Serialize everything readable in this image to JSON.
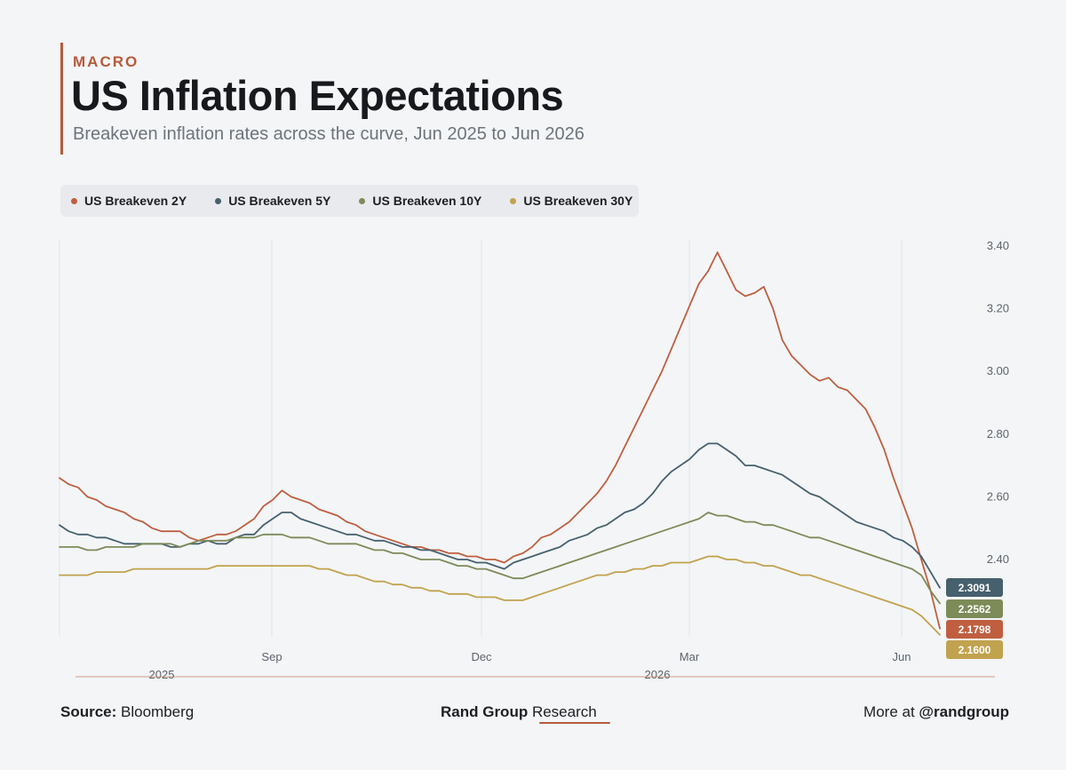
{
  "header": {
    "kicker": "MACRO",
    "title": "US Inflation Expectations",
    "subtitle": "Breakeven inflation rates across the curve, Jun 2025 to Jun 2026"
  },
  "footer": {
    "source_label": "Source:",
    "source_value": "Bloomberg",
    "brand_bold": "Rand Group",
    "brand_light": "Research",
    "more_label": "More at",
    "more_handle": "@randgroup"
  },
  "chart_data": {
    "type": "line",
    "x_start": "2025-06-02",
    "x_step": "weekly",
    "x_ticks": [
      "Sep",
      "Dec",
      "Mar",
      "Jun"
    ],
    "year_labels": [
      "2025",
      "2026"
    ],
    "ylim": [
      2.15,
      3.42
    ],
    "y_ticks": [
      "3.40",
      "3.20",
      "3.00",
      "2.80",
      "2.60",
      "2.40"
    ],
    "y_axis_position": "right",
    "grid": "vertical",
    "legend_position": "top-left",
    "series": [
      {
        "name": "US Breakeven 2Y",
        "color": "#bf5f40",
        "last_label": "2.1798",
        "values": [
          2.66,
          2.64,
          2.63,
          2.6,
          2.59,
          2.57,
          2.56,
          2.55,
          2.53,
          2.52,
          2.5,
          2.49,
          2.49,
          2.49,
          2.47,
          2.46,
          2.47,
          2.48,
          2.48,
          2.49,
          2.51,
          2.53,
          2.57,
          2.59,
          2.62,
          2.6,
          2.59,
          2.58,
          2.56,
          2.55,
          2.54,
          2.52,
          2.51,
          2.49,
          2.48,
          2.47,
          2.46,
          2.45,
          2.44,
          2.44,
          2.43,
          2.43,
          2.42,
          2.42,
          2.41,
          2.41,
          2.4,
          2.4,
          2.39,
          2.41,
          2.42,
          2.44,
          2.47,
          2.48,
          2.5,
          2.52,
          2.55,
          2.58,
          2.61,
          2.65,
          2.7,
          2.76,
          2.82,
          2.88,
          2.94,
          3.0,
          3.07,
          3.14,
          3.21,
          3.28,
          3.32,
          3.38,
          3.32,
          3.26,
          3.24,
          3.25,
          3.27,
          3.2,
          3.1,
          3.05,
          3.02,
          2.99,
          2.97,
          2.98,
          2.95,
          2.94,
          2.91,
          2.88,
          2.82,
          2.75,
          2.66,
          2.58,
          2.5,
          2.4,
          2.3,
          2.18
        ]
      },
      {
        "name": "US Breakeven 5Y",
        "color": "#46606d",
        "last_label": "2.3091",
        "values": [
          2.51,
          2.49,
          2.48,
          2.48,
          2.47,
          2.47,
          2.46,
          2.45,
          2.45,
          2.45,
          2.45,
          2.45,
          2.44,
          2.44,
          2.45,
          2.45,
          2.46,
          2.45,
          2.45,
          2.47,
          2.48,
          2.48,
          2.51,
          2.53,
          2.55,
          2.55,
          2.53,
          2.52,
          2.51,
          2.5,
          2.49,
          2.48,
          2.48,
          2.47,
          2.46,
          2.46,
          2.45,
          2.44,
          2.44,
          2.43,
          2.43,
          2.42,
          2.41,
          2.4,
          2.4,
          2.39,
          2.39,
          2.38,
          2.37,
          2.39,
          2.4,
          2.41,
          2.42,
          2.43,
          2.44,
          2.46,
          2.47,
          2.48,
          2.5,
          2.51,
          2.53,
          2.55,
          2.56,
          2.58,
          2.61,
          2.65,
          2.68,
          2.7,
          2.72,
          2.75,
          2.77,
          2.77,
          2.75,
          2.73,
          2.7,
          2.7,
          2.69,
          2.68,
          2.67,
          2.65,
          2.63,
          2.61,
          2.6,
          2.58,
          2.56,
          2.54,
          2.52,
          2.51,
          2.5,
          2.49,
          2.47,
          2.46,
          2.44,
          2.41,
          2.36,
          2.31
        ]
      },
      {
        "name": "US Breakeven 10Y",
        "color": "#7d8b58",
        "last_label": "2.2562",
        "values": [
          2.44,
          2.44,
          2.44,
          2.43,
          2.43,
          2.44,
          2.44,
          2.44,
          2.44,
          2.45,
          2.45,
          2.45,
          2.45,
          2.44,
          2.45,
          2.46,
          2.46,
          2.46,
          2.46,
          2.47,
          2.47,
          2.47,
          2.48,
          2.48,
          2.48,
          2.47,
          2.47,
          2.47,
          2.46,
          2.45,
          2.45,
          2.45,
          2.45,
          2.44,
          2.43,
          2.43,
          2.42,
          2.42,
          2.41,
          2.4,
          2.4,
          2.4,
          2.39,
          2.38,
          2.38,
          2.37,
          2.37,
          2.36,
          2.35,
          2.34,
          2.34,
          2.35,
          2.36,
          2.37,
          2.38,
          2.39,
          2.4,
          2.41,
          2.42,
          2.43,
          2.44,
          2.45,
          2.46,
          2.47,
          2.48,
          2.49,
          2.5,
          2.51,
          2.52,
          2.53,
          2.55,
          2.54,
          2.54,
          2.53,
          2.52,
          2.52,
          2.51,
          2.51,
          2.5,
          2.49,
          2.48,
          2.47,
          2.47,
          2.46,
          2.45,
          2.44,
          2.43,
          2.42,
          2.41,
          2.4,
          2.39,
          2.38,
          2.37,
          2.35,
          2.3,
          2.26
        ]
      },
      {
        "name": "US Breakeven 30Y",
        "color": "#c1a24e",
        "last_label": "2.1600",
        "values": [
          2.35,
          2.35,
          2.35,
          2.35,
          2.36,
          2.36,
          2.36,
          2.36,
          2.37,
          2.37,
          2.37,
          2.37,
          2.37,
          2.37,
          2.37,
          2.37,
          2.37,
          2.38,
          2.38,
          2.38,
          2.38,
          2.38,
          2.38,
          2.38,
          2.38,
          2.38,
          2.38,
          2.38,
          2.37,
          2.37,
          2.36,
          2.35,
          2.35,
          2.34,
          2.33,
          2.33,
          2.32,
          2.32,
          2.31,
          2.31,
          2.3,
          2.3,
          2.29,
          2.29,
          2.29,
          2.28,
          2.28,
          2.28,
          2.27,
          2.27,
          2.27,
          2.28,
          2.29,
          2.3,
          2.31,
          2.32,
          2.33,
          2.34,
          2.35,
          2.35,
          2.36,
          2.36,
          2.37,
          2.37,
          2.38,
          2.38,
          2.39,
          2.39,
          2.39,
          2.4,
          2.41,
          2.41,
          2.4,
          2.4,
          2.39,
          2.39,
          2.38,
          2.38,
          2.37,
          2.36,
          2.35,
          2.35,
          2.34,
          2.33,
          2.32,
          2.31,
          2.3,
          2.29,
          2.28,
          2.27,
          2.26,
          2.25,
          2.24,
          2.22,
          2.19,
          2.16
        ]
      }
    ]
  }
}
